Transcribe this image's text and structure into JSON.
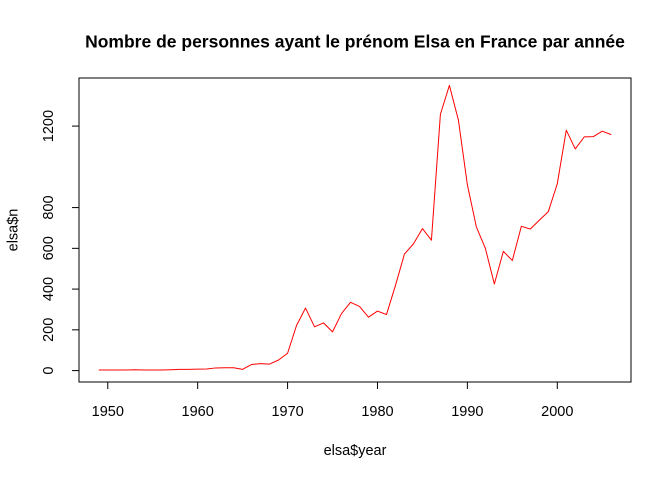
{
  "chart_data": {
    "type": "line",
    "title": "Nombre de personnes ayant le prénom Elsa en France par année",
    "xlabel": "elsa$year",
    "ylabel": "elsa$n",
    "xlim": [
      1946.8,
      2008.2
    ],
    "ylim": [
      -56,
      1436
    ],
    "x_ticks": [
      1950,
      1960,
      1970,
      1980,
      1990,
      2000
    ],
    "x_tick_labels": [
      "1950",
      "1960",
      "1970",
      "1980",
      "1990",
      "2000"
    ],
    "y_ticks": [
      0,
      200,
      400,
      600,
      800,
      1200
    ],
    "y_tick_labels": [
      "0",
      "200",
      "400",
      "600",
      "800",
      "1200"
    ],
    "grid": false,
    "legend": "none",
    "series_color": "#ff0000",
    "series": [
      {
        "x": [
          1949,
          1950,
          1951,
          1952,
          1953,
          1954,
          1955,
          1956,
          1957,
          1958,
          1959,
          1960,
          1961,
          1962,
          1963,
          1964,
          1965,
          1966,
          1967,
          1968,
          1969,
          1970,
          1971,
          1972,
          1973,
          1974,
          1975,
          1976,
          1977,
          1978,
          1979,
          1980,
          1981,
          1982,
          1983,
          1984,
          1985,
          1986,
          1987,
          1988,
          1989,
          1990,
          1991,
          1992,
          1993,
          1994,
          1995,
          1996,
          1997,
          1998,
          1999,
          2000,
          2001,
          2002,
          2003,
          2004,
          2005,
          2006
        ],
        "values": [
          3,
          3,
          3,
          3,
          4,
          3,
          3,
          3,
          4,
          6,
          6,
          7,
          8,
          13,
          14,
          14,
          6,
          30,
          34,
          32,
          52,
          85,
          222,
          307,
          215,
          234,
          190,
          280,
          335,
          315,
          262,
          292,
          275,
          418,
          572,
          622,
          697,
          640,
          1258,
          1400,
          1230,
          912,
          705,
          600,
          425,
          585,
          540,
          708,
          695,
          738,
          780,
          917,
          1180,
          1088,
          1147,
          1148,
          1175,
          1158
        ]
      }
    ]
  }
}
